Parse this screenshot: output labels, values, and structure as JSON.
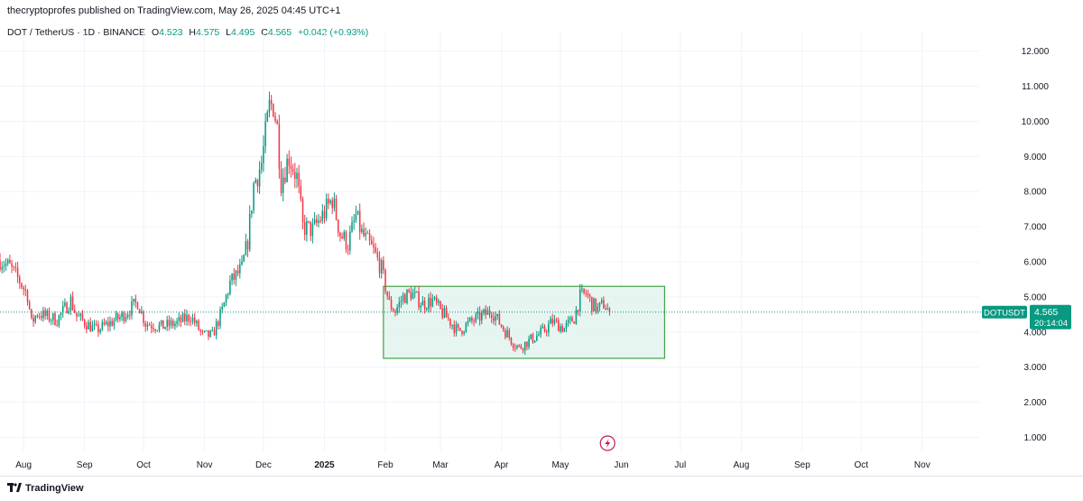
{
  "header": {
    "publisher_line": "thecryptoprofes published on TradingView.com, May 26, 2025 04:45 UTC+1"
  },
  "legend": {
    "symbol_line": "DOT / TetherUS · 1D · BINANCE",
    "o_label": "O",
    "o_value": "4.523",
    "h_label": "H",
    "h_value": "4.575",
    "l_label": "L",
    "l_value": "4.495",
    "c_label": "C",
    "c_value": "4.565",
    "change": "+0.042 (+0.93%)"
  },
  "price_badge": {
    "symbol": "DOTUSDT",
    "price": "4.565",
    "countdown": "20:14:04"
  },
  "footer": {
    "brand": "TradingView"
  },
  "colors": {
    "up": "#089981",
    "down": "#f23645",
    "grid": "#f0f3fa",
    "range_fill": "#e3f3ef",
    "range_border": "#43a047",
    "badge": "#089981"
  },
  "chart_data": {
    "type": "candlestick",
    "ylim": [
      0.6,
      12.3
    ],
    "y_ticks": [
      "1.000",
      "2.000",
      "3.000",
      "4.000",
      "5.000",
      "6.000",
      "7.000",
      "8.000",
      "9.000",
      "10.000",
      "11.000",
      "12.000"
    ],
    "x_ticks": [
      {
        "label": "Aug",
        "date": "2024-08-01"
      },
      {
        "label": "Sep",
        "date": "2024-09-01"
      },
      {
        "label": "Oct",
        "date": "2024-10-01"
      },
      {
        "label": "Nov",
        "date": "2024-11-01"
      },
      {
        "label": "Dec",
        "date": "2024-12-01"
      },
      {
        "label": "2025",
        "date": "2025-01-01",
        "bold": true
      },
      {
        "label": "Feb",
        "date": "2025-02-01"
      },
      {
        "label": "Mar",
        "date": "2025-03-01"
      },
      {
        "label": "Apr",
        "date": "2025-04-01"
      },
      {
        "label": "May",
        "date": "2025-05-01"
      },
      {
        "label": "Jun",
        "date": "2025-06-01"
      },
      {
        "label": "Jul",
        "date": "2025-07-01"
      },
      {
        "label": "Aug",
        "date": "2025-08-01"
      },
      {
        "label": "Sep",
        "date": "2025-09-01"
      },
      {
        "label": "Oct",
        "date": "2025-10-01"
      },
      {
        "label": "Nov",
        "date": "2025-11-01"
      }
    ],
    "x_start": "2024-07-20",
    "x_end": "2025-11-30",
    "close_path": [
      [
        "2024-07-20",
        6.05
      ],
      [
        "2024-07-25",
        5.85
      ],
      [
        "2024-07-30",
        5.45
      ],
      [
        "2024-08-03",
        5.05
      ],
      [
        "2024-08-05",
        4.25
      ],
      [
        "2024-08-08",
        4.55
      ],
      [
        "2024-08-12",
        4.45
      ],
      [
        "2024-08-18",
        4.35
      ],
      [
        "2024-08-25",
        4.9
      ],
      [
        "2024-08-28",
        4.45
      ],
      [
        "2024-09-03",
        4.2
      ],
      [
        "2024-09-07",
        4.05
      ],
      [
        "2024-09-12",
        4.2
      ],
      [
        "2024-09-20",
        4.45
      ],
      [
        "2024-09-28",
        4.85
      ],
      [
        "2024-10-02",
        4.25
      ],
      [
        "2024-10-10",
        4.15
      ],
      [
        "2024-10-18",
        4.25
      ],
      [
        "2024-10-25",
        4.45
      ],
      [
        "2024-10-31",
        3.9
      ],
      [
        "2024-11-05",
        3.9
      ],
      [
        "2024-11-10",
        4.6
      ],
      [
        "2024-11-14",
        5.4
      ],
      [
        "2024-11-20",
        5.8
      ],
      [
        "2024-11-23",
        6.6
      ],
      [
        "2024-11-26",
        8.2
      ],
      [
        "2024-11-30",
        8.8
      ],
      [
        "2024-12-02",
        9.6
      ],
      [
        "2024-12-04",
        10.4
      ],
      [
        "2024-12-06",
        10.5
      ],
      [
        "2024-12-08",
        9.8
      ],
      [
        "2024-12-10",
        8.3
      ],
      [
        "2024-12-14",
        9.0
      ],
      [
        "2024-12-18",
        8.4
      ],
      [
        "2024-12-21",
        7.0
      ],
      [
        "2024-12-26",
        6.9
      ],
      [
        "2025-01-01",
        7.4
      ],
      [
        "2025-01-05",
        7.8
      ],
      [
        "2025-01-09",
        6.8
      ],
      [
        "2025-01-13",
        6.5
      ],
      [
        "2025-01-17",
        7.3
      ],
      [
        "2025-01-20",
        6.8
      ],
      [
        "2025-01-26",
        6.3
      ],
      [
        "2025-01-30",
        5.8
      ],
      [
        "2025-02-03",
        4.8
      ],
      [
        "2025-02-06",
        4.6
      ],
      [
        "2025-02-10",
        5.0
      ],
      [
        "2025-02-14",
        5.1
      ],
      [
        "2025-02-20",
        4.8
      ],
      [
        "2025-02-25",
        4.9
      ],
      [
        "2025-03-01",
        4.6
      ],
      [
        "2025-03-06",
        4.3
      ],
      [
        "2025-03-10",
        4.0
      ],
      [
        "2025-03-14",
        4.2
      ],
      [
        "2025-03-20",
        4.4
      ],
      [
        "2025-03-27",
        4.6
      ],
      [
        "2025-04-02",
        4.1
      ],
      [
        "2025-04-07",
        3.7
      ],
      [
        "2025-04-10",
        3.55
      ],
      [
        "2025-04-15",
        3.75
      ],
      [
        "2025-04-22",
        4.0
      ],
      [
        "2025-04-27",
        4.3
      ],
      [
        "2025-05-03",
        4.1
      ],
      [
        "2025-05-08",
        4.4
      ],
      [
        "2025-05-11",
        5.0
      ],
      [
        "2025-05-14",
        5.1
      ],
      [
        "2025-05-17",
        4.8
      ],
      [
        "2025-05-20",
        4.65
      ],
      [
        "2025-05-23",
        4.8
      ],
      [
        "2025-05-26",
        4.565
      ]
    ],
    "range_box": {
      "start": "2025-01-31",
      "end": "2025-06-23",
      "low": 3.25,
      "high": 5.3
    },
    "current_price": 4.565
  }
}
